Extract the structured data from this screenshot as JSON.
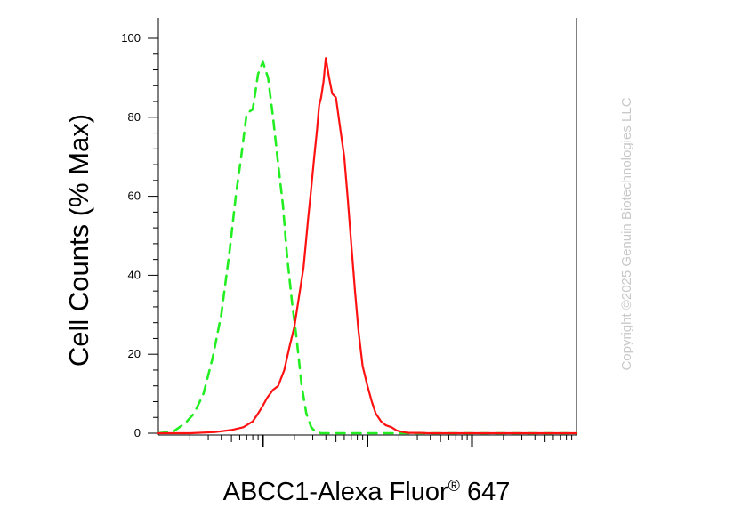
{
  "chart_data": {
    "type": "line",
    "title": "",
    "ylabel": "Cell Counts (% Max)",
    "xlabel": "ABCC1-Alexa Fluor",
    "xlabel_mark": "®",
    "xlabel_suffix": " 647",
    "watermark": "Copyright ©2025 Genuin Biotechnologies LLC",
    "ylim": [
      0,
      100
    ],
    "yticks": [
      0,
      20,
      40,
      60,
      80,
      100
    ],
    "ytick_labels": [
      "0",
      "20",
      "40",
      "60",
      "80",
      "100"
    ],
    "xscale": "log",
    "xlim": [
      10,
      100000
    ],
    "xtick_labels": [],
    "grid": false,
    "legend": "none",
    "series": [
      {
        "color": "#22ee22",
        "style": "dashed",
        "x": [
          10,
          14,
          18,
          22,
          27,
          33,
          40,
          48,
          55,
          62,
          70,
          80,
          90,
          100,
          112,
          125,
          140,
          155,
          170,
          190,
          210,
          235,
          260,
          290,
          320,
          360,
          400,
          450,
          500,
          600,
          800,
          1000,
          1500,
          2000,
          5000,
          10000,
          50000,
          100000
        ],
        "y": [
          0,
          0.5,
          2.5,
          5,
          10,
          19,
          30,
          46,
          60,
          70,
          81,
          82,
          91,
          94,
          90,
          80,
          68,
          58,
          45,
          33,
          24,
          12,
          5,
          1.5,
          0.3,
          0,
          0,
          0,
          0,
          0,
          0,
          0,
          0,
          0,
          0,
          0,
          0,
          0
        ]
      },
      {
        "color": "#ff1111",
        "style": "solid",
        "x": [
          10,
          20,
          35,
          50,
          65,
          80,
          90,
          100,
          110,
          125,
          140,
          160,
          180,
          200,
          220,
          245,
          270,
          290,
          310,
          330,
          345,
          360,
          380,
          400,
          430,
          460,
          500,
          550,
          600,
          650,
          700,
          760,
          820,
          900,
          1000,
          1100,
          1200,
          1350,
          1500,
          1700,
          1900,
          2100,
          2300,
          2500,
          2800,
          3200,
          3800,
          4500,
          6000,
          8000,
          10000,
          30000,
          100000
        ],
        "y": [
          0,
          0,
          0.3,
          0.8,
          1.5,
          3,
          5,
          7,
          9,
          11,
          12,
          16,
          22,
          27,
          34,
          42,
          54,
          62,
          70,
          77,
          83,
          85,
          89,
          95,
          90,
          86,
          85,
          77,
          70,
          59,
          48,
          36,
          26,
          17,
          12,
          8,
          5,
          3,
          2,
          1.5,
          0.7,
          0.4,
          0.2,
          0.1,
          0.1,
          0.1,
          0,
          0,
          0,
          0,
          0,
          0,
          0
        ]
      }
    ]
  }
}
